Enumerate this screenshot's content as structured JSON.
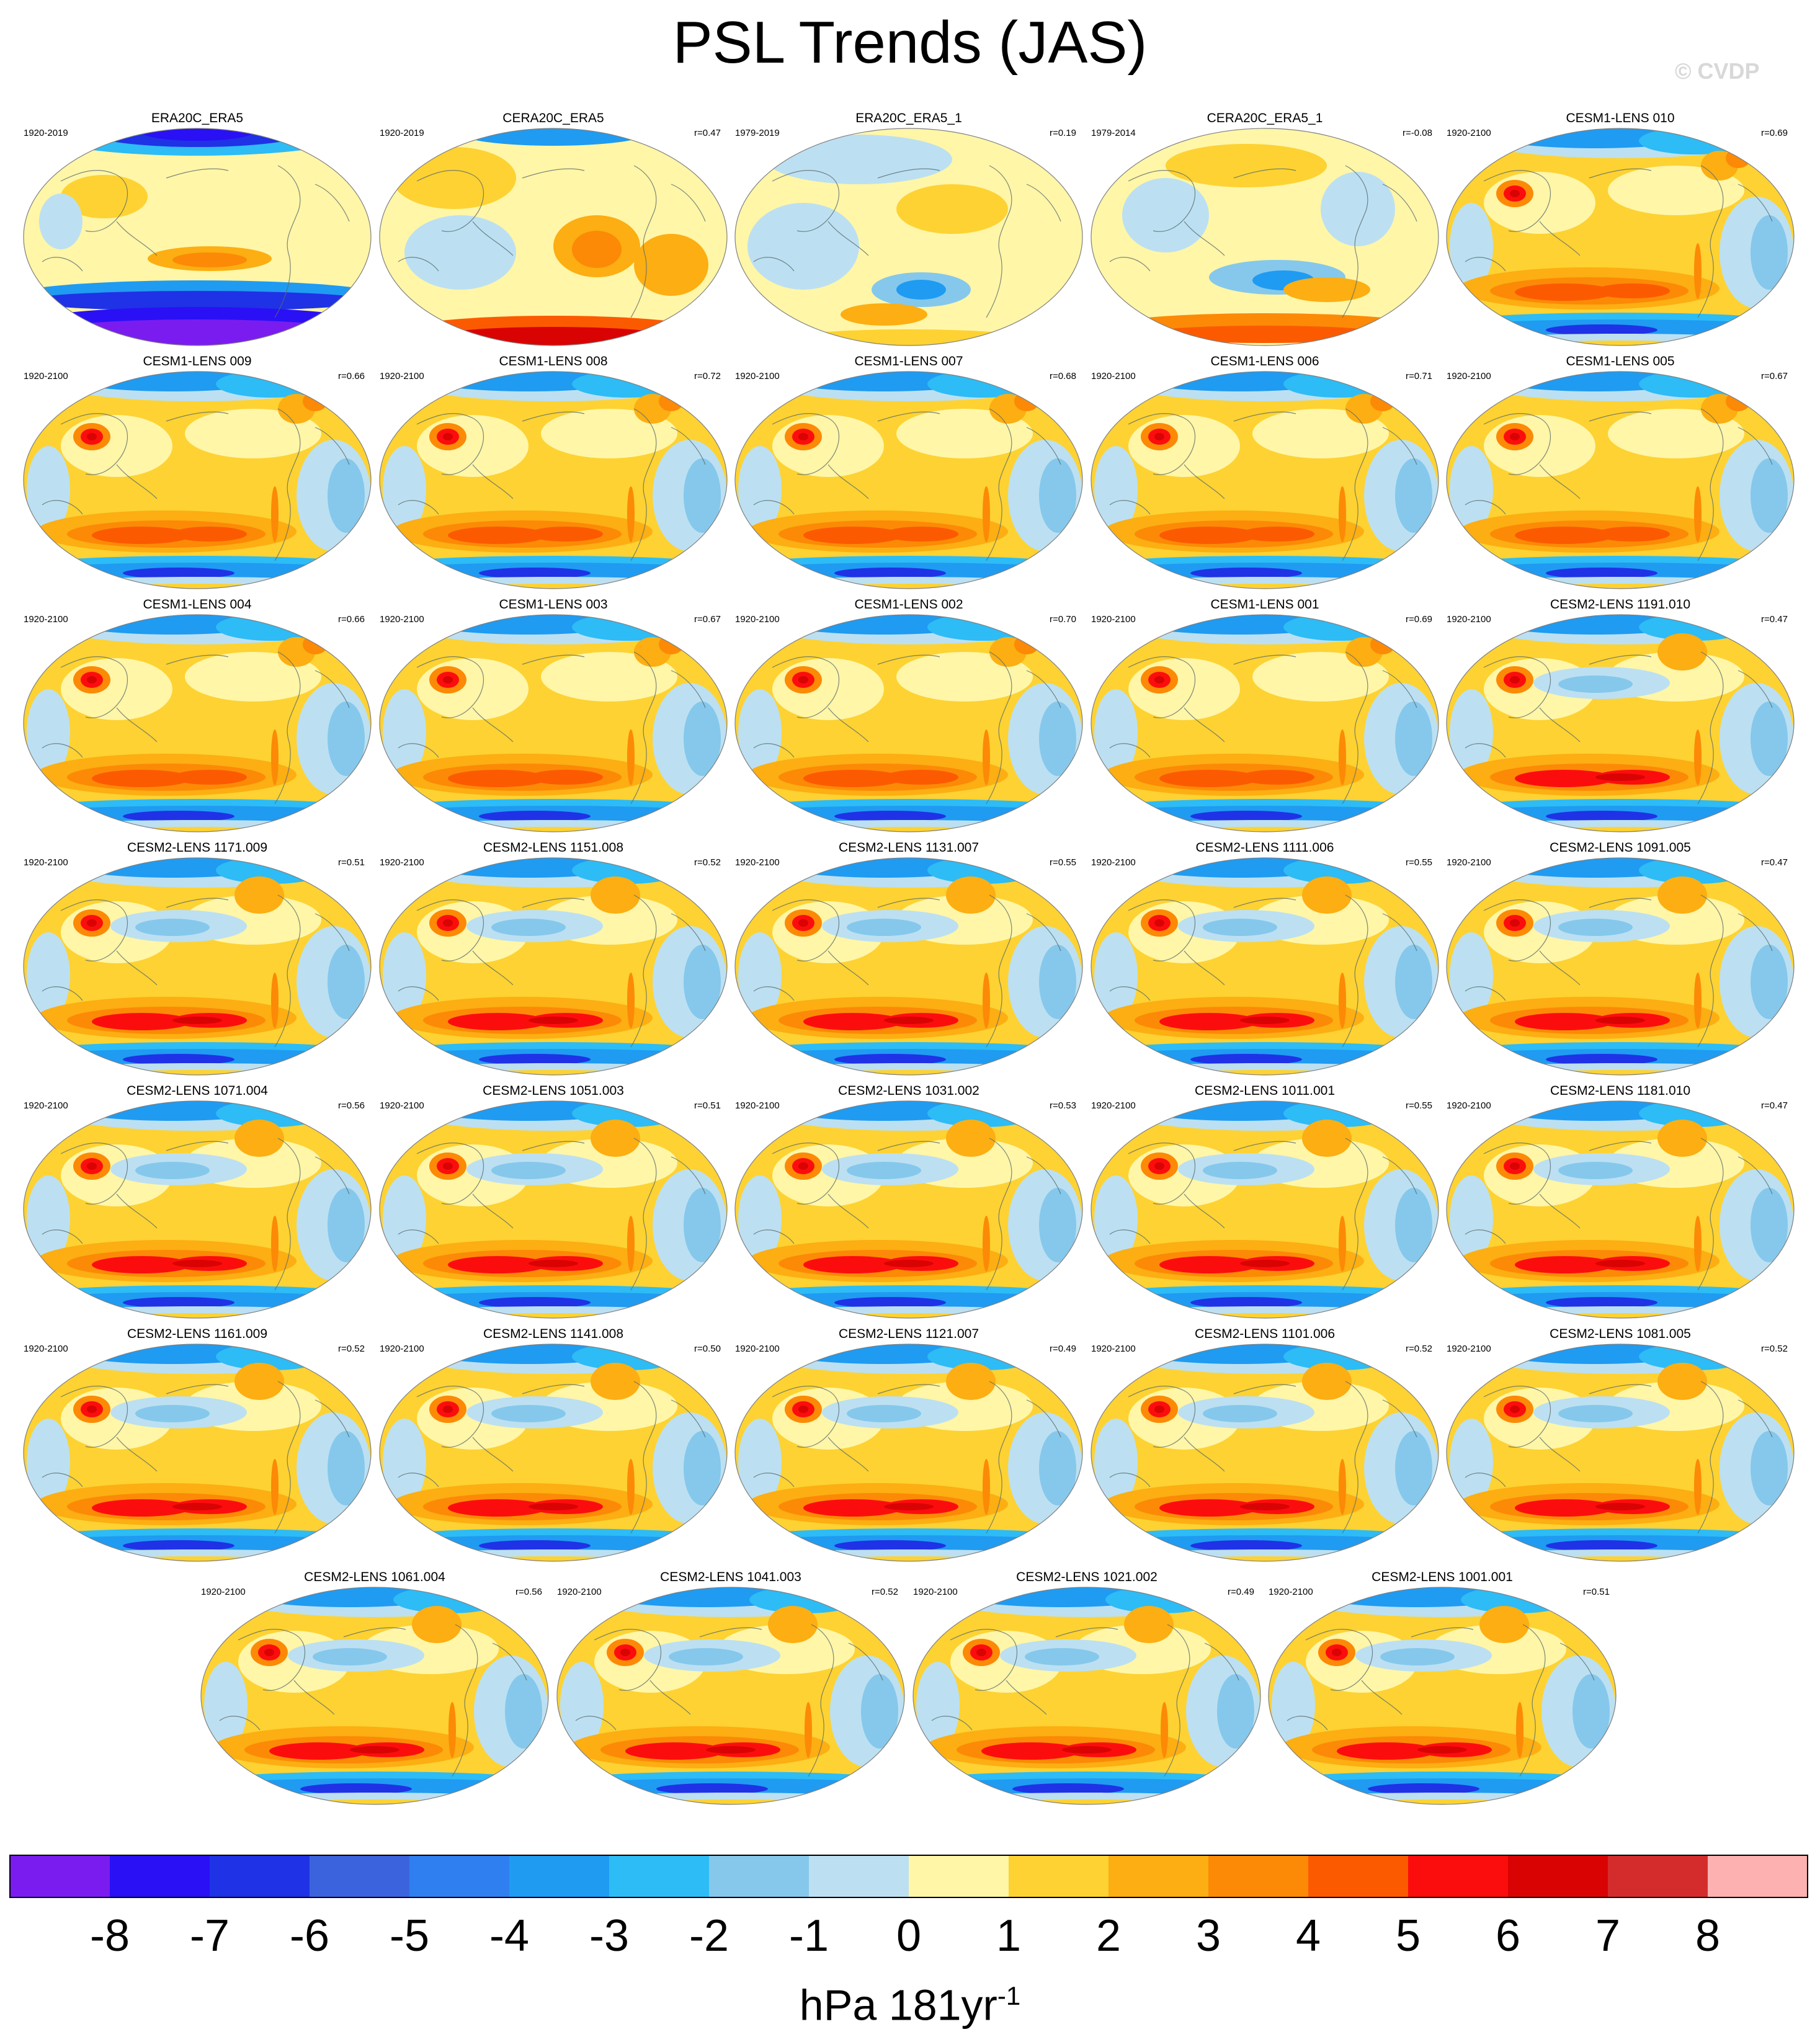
{
  "title": "PSL Trends (JAS)",
  "watermark": "© CVDP",
  "panels": [
    {
      "name": "ERA20C_ERA5",
      "period": "1920-2019",
      "r": ""
    },
    {
      "name": "CERA20C_ERA5",
      "period": "1920-2019",
      "r": "r=0.47"
    },
    {
      "name": "ERA20C_ERA5_1",
      "period": "1979-2019",
      "r": "r=0.19"
    },
    {
      "name": "CERA20C_ERA5_1",
      "period": "1979-2014",
      "r": "r=-0.08"
    },
    {
      "name": "CESM1-LENS 010",
      "period": "1920-2100",
      "r": "r=0.69"
    },
    {
      "name": "CESM1-LENS 009",
      "period": "1920-2100",
      "r": "r=0.66"
    },
    {
      "name": "CESM1-LENS 008",
      "period": "1920-2100",
      "r": "r=0.72"
    },
    {
      "name": "CESM1-LENS 007",
      "period": "1920-2100",
      "r": "r=0.68"
    },
    {
      "name": "CESM1-LENS 006",
      "period": "1920-2100",
      "r": "r=0.71"
    },
    {
      "name": "CESM1-LENS 005",
      "period": "1920-2100",
      "r": "r=0.67"
    },
    {
      "name": "CESM1-LENS 004",
      "period": "1920-2100",
      "r": "r=0.66"
    },
    {
      "name": "CESM1-LENS 003",
      "period": "1920-2100",
      "r": "r=0.67"
    },
    {
      "name": "CESM1-LENS 002",
      "period": "1920-2100",
      "r": "r=0.70"
    },
    {
      "name": "CESM1-LENS 001",
      "period": "1920-2100",
      "r": "r=0.69"
    },
    {
      "name": "CESM2-LENS 1191.010",
      "period": "1920-2100",
      "r": "r=0.47"
    },
    {
      "name": "CESM2-LENS 1171.009",
      "period": "1920-2100",
      "r": "r=0.51"
    },
    {
      "name": "CESM2-LENS 1151.008",
      "period": "1920-2100",
      "r": "r=0.52"
    },
    {
      "name": "CESM2-LENS 1131.007",
      "period": "1920-2100",
      "r": "r=0.55"
    },
    {
      "name": "CESM2-LENS 1111.006",
      "period": "1920-2100",
      "r": "r=0.55"
    },
    {
      "name": "CESM2-LENS 1091.005",
      "period": "1920-2100",
      "r": "r=0.47"
    },
    {
      "name": "CESM2-LENS 1071.004",
      "period": "1920-2100",
      "r": "r=0.56"
    },
    {
      "name": "CESM2-LENS 1051.003",
      "period": "1920-2100",
      "r": "r=0.51"
    },
    {
      "name": "CESM2-LENS 1031.002",
      "period": "1920-2100",
      "r": "r=0.53"
    },
    {
      "name": "CESM2-LENS 1011.001",
      "period": "1920-2100",
      "r": "r=0.55"
    },
    {
      "name": "CESM2-LENS 1181.010",
      "period": "1920-2100",
      "r": "r=0.47"
    },
    {
      "name": "CESM2-LENS 1161.009",
      "period": "1920-2100",
      "r": "r=0.52"
    },
    {
      "name": "CESM2-LENS 1141.008",
      "period": "1920-2100",
      "r": "r=0.50"
    },
    {
      "name": "CESM2-LENS 1121.007",
      "period": "1920-2100",
      "r": "r=0.49"
    },
    {
      "name": "CESM2-LENS 1101.006",
      "period": "1920-2100",
      "r": "r=0.52"
    },
    {
      "name": "CESM2-LENS 1081.005",
      "period": "1920-2100",
      "r": "r=0.52"
    },
    {
      "name": "CESM2-LENS 1061.004",
      "period": "1920-2100",
      "r": "r=0.56"
    },
    {
      "name": "CESM2-LENS 1041.003",
      "period": "1920-2100",
      "r": "r=0.52"
    },
    {
      "name": "CESM2-LENS 1021.002",
      "period": "1920-2100",
      "r": "r=0.49"
    },
    {
      "name": "CESM2-LENS 1001.001",
      "period": "1920-2100",
      "r": "r=0.51"
    }
  ],
  "colorbar": {
    "colors": [
      "#7a1cf0",
      "#2a10f5",
      "#1f32e6",
      "#3b63dd",
      "#2f7ff0",
      "#1f9bf2",
      "#2dbcf5",
      "#85c8ec",
      "#bce0f2",
      "#fff6a8",
      "#fdd232",
      "#fcae12",
      "#fc8a06",
      "#fc5a00",
      "#fc0d0d",
      "#d90303",
      "#d42c2c",
      "#fdb1b1"
    ],
    "ticks": [
      "-8",
      "-7",
      "-6",
      "-5",
      "-4",
      "-3",
      "-2",
      "-1",
      "0",
      "1",
      "2",
      "3",
      "4",
      "5",
      "6",
      "7",
      "8"
    ],
    "units": "hPa 181yr",
    "units_sup": "-1"
  }
}
